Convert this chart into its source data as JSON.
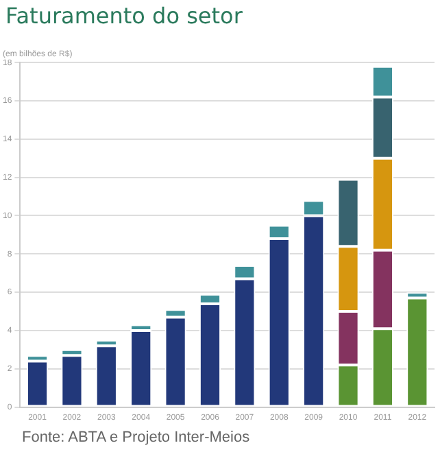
{
  "chart_data": {
    "type": "bar",
    "title": "Faturamento do setor",
    "subtitle": "(em bilhões de R$)",
    "annotations": [
      "Fonte: ABTA e Projeto Inter-Meios"
    ],
    "categories": [
      "2001",
      "2002",
      "2003",
      "2004",
      "2005",
      "2006",
      "2007",
      "2008",
      "2009",
      "2010",
      "2011",
      "2012"
    ],
    "stacked": true,
    "ylim": [
      0,
      18
    ],
    "yticks": [
      0,
      2,
      4,
      6,
      8,
      10,
      12,
      14,
      16,
      18
    ],
    "grid": "y",
    "legend": false,
    "series": [
      {
        "color": "#22387a",
        "values": [
          2.4,
          2.7,
          3.2,
          4.0,
          4.7,
          5.4,
          6.7,
          8.8,
          10.0,
          null,
          null,
          null
        ]
      },
      {
        "color": "#5a9433",
        "values": [
          null,
          null,
          null,
          null,
          null,
          null,
          null,
          null,
          null,
          2.2,
          4.1,
          5.7
        ]
      },
      {
        "color": "#84335f",
        "values": [
          null,
          null,
          null,
          null,
          null,
          null,
          null,
          null,
          null,
          2.8,
          4.1,
          null
        ]
      },
      {
        "color": "#d6960f",
        "values": [
          null,
          null,
          null,
          null,
          null,
          null,
          null,
          null,
          null,
          3.4,
          4.8,
          null
        ]
      },
      {
        "color": "#38636f",
        "values": [
          null,
          null,
          null,
          null,
          null,
          null,
          null,
          null,
          null,
          3.5,
          3.2,
          null
        ]
      },
      {
        "color": "#3f9199",
        "values": [
          0.3,
          0.3,
          0.3,
          0.3,
          0.4,
          0.5,
          0.7,
          0.7,
          0.8,
          null,
          1.6,
          0.3
        ]
      }
    ]
  }
}
